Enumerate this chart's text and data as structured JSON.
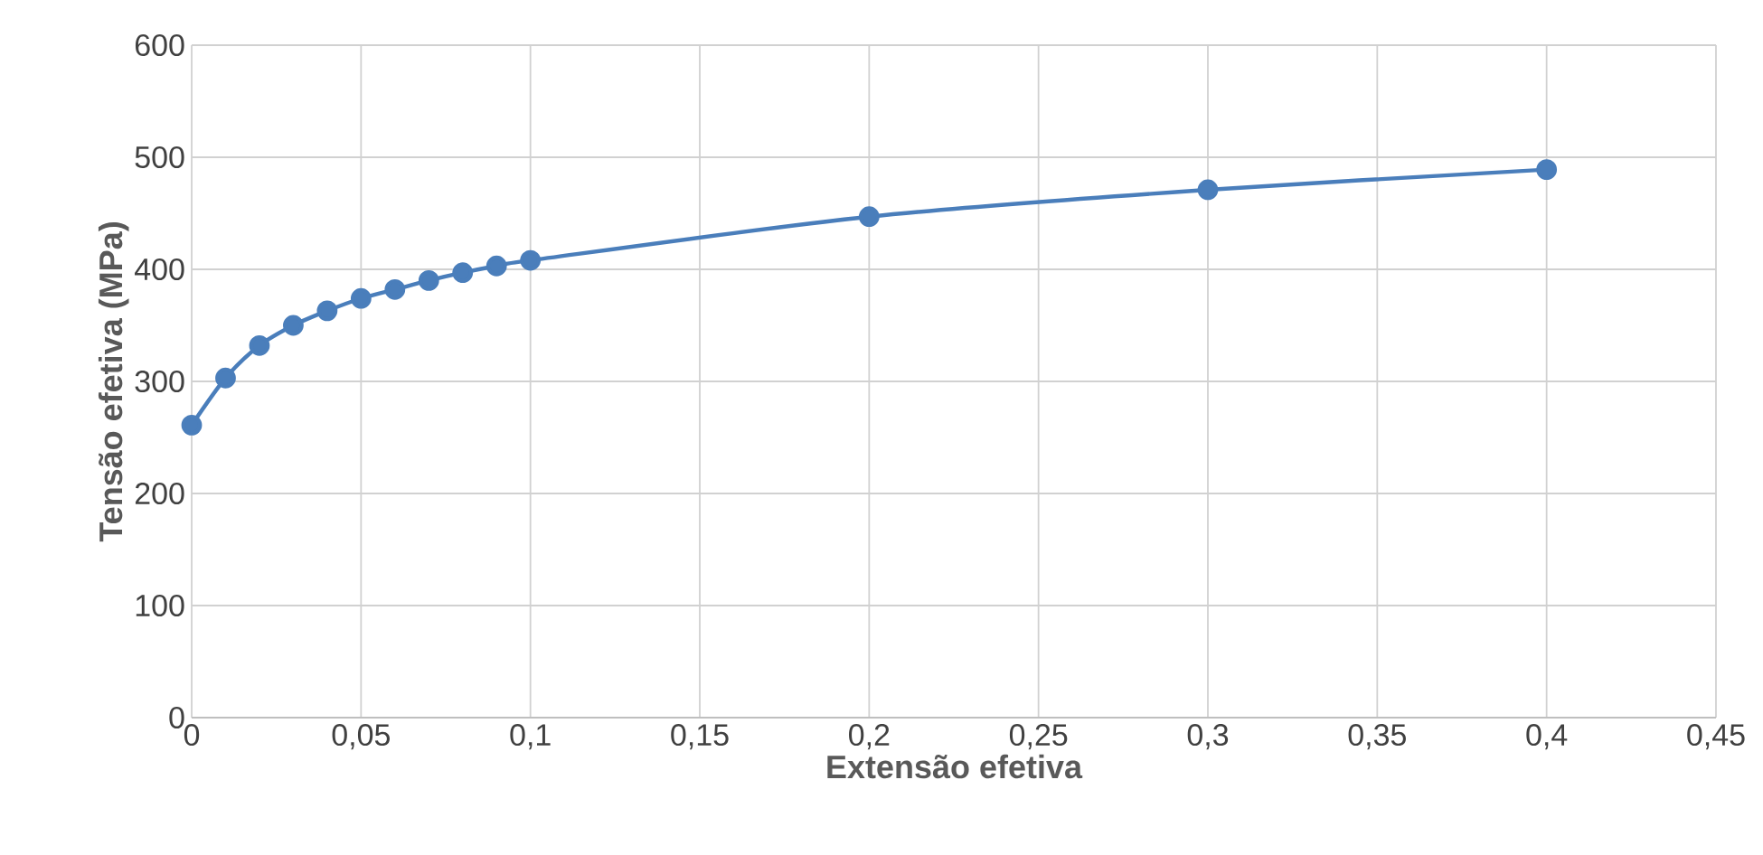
{
  "chart_data": {
    "type": "line",
    "xlabel": "Extensão efetiva",
    "ylabel": "Tensão efetiva (MPa)",
    "x": [
      0,
      0.01,
      0.02,
      0.03,
      0.04,
      0.05,
      0.06,
      0.07,
      0.08,
      0.09,
      0.1,
      0.2,
      0.3,
      0.4
    ],
    "series": [
      {
        "color": "#4a7ebb",
        "values": [
          261,
          303,
          332,
          350,
          363,
          374,
          382,
          390,
          397,
          403,
          408,
          447,
          471,
          489
        ]
      }
    ],
    "xlim": [
      0,
      0.45
    ],
    "xticks": [
      0,
      {
        "value": 0.05,
        "label": "0,05"
      },
      {
        "value": 0.1,
        "label": "0,1"
      },
      {
        "value": 0.15,
        "label": "0,15"
      },
      {
        "value": 0.2,
        "label": "0,2"
      },
      {
        "value": 0.25,
        "label": "0,25"
      },
      {
        "value": 0.3,
        "label": "0,3"
      },
      {
        "value": 0.35,
        "label": "0,35"
      },
      {
        "value": 0.4,
        "label": "0,4"
      },
      {
        "value": 0.45,
        "label": "0,45"
      }
    ],
    "ylim": [
      0,
      600
    ],
    "yticks": [
      0,
      100,
      200,
      300,
      400,
      500,
      600
    ],
    "grid": true,
    "marker": "circle",
    "line_style": "solid"
  }
}
